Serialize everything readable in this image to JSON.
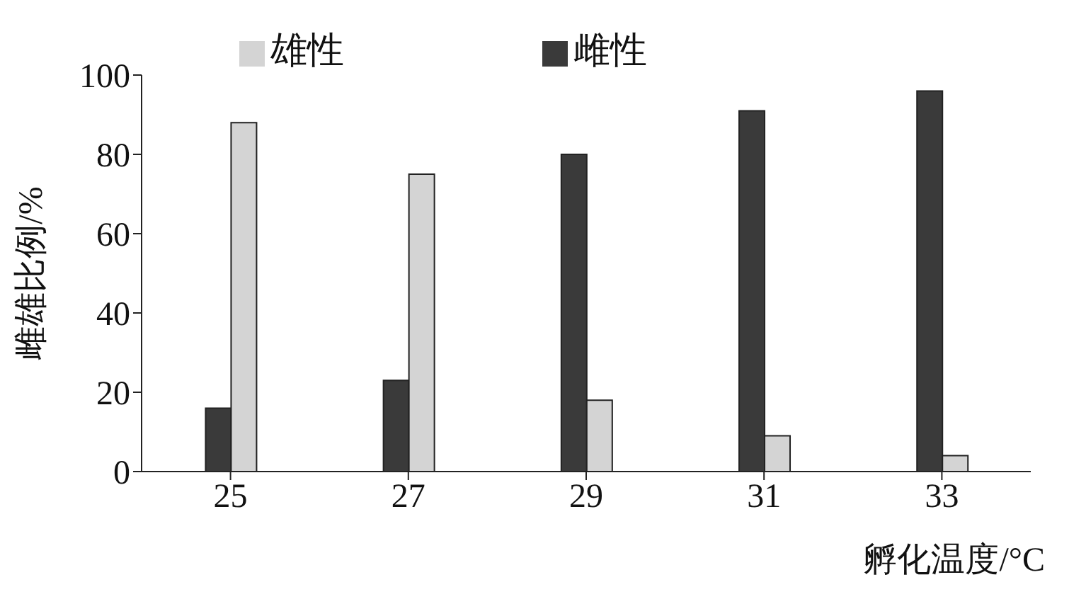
{
  "chart_data": {
    "type": "bar",
    "xlabel": "孵化温度/°C",
    "ylabel": "雌雄比例/%",
    "categories": [
      "25",
      "27",
      "29",
      "31",
      "33"
    ],
    "series": [
      {
        "name": "雌性",
        "color": "#3a3a3a",
        "values": [
          16,
          23,
          80,
          91,
          96
        ]
      },
      {
        "name": "雄性",
        "color": "#d4d4d4",
        "values": [
          88,
          75,
          18,
          9,
          4
        ]
      }
    ],
    "ylim": [
      0,
      100
    ],
    "yticks": [
      0,
      20,
      40,
      60,
      80,
      100
    ],
    "grid": false,
    "legend": "top"
  }
}
